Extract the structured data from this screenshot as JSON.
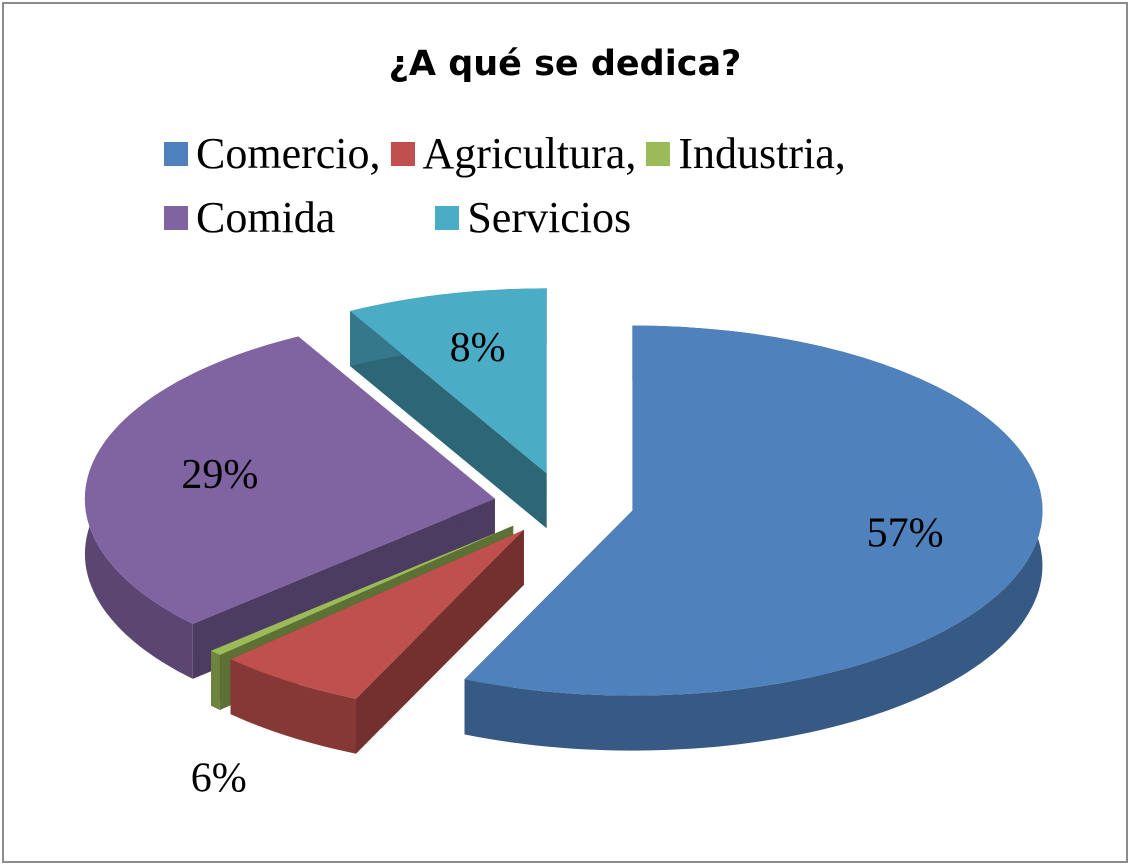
{
  "chart_data": {
    "type": "pie",
    "title": "¿A qué se dedica?",
    "categories": [
      "Comercio,",
      "Agricultura,",
      "Industria,",
      "Comida",
      "Servicios"
    ],
    "values": [
      57,
      6,
      0.5,
      29,
      8
    ],
    "value_labels": [
      "57%",
      "6%",
      null,
      "29%",
      "8%"
    ],
    "colors": [
      "#4f81bd",
      "#c0504d",
      "#9bbb59",
      "#8064a2",
      "#4bacc6"
    ],
    "legend": "top"
  }
}
